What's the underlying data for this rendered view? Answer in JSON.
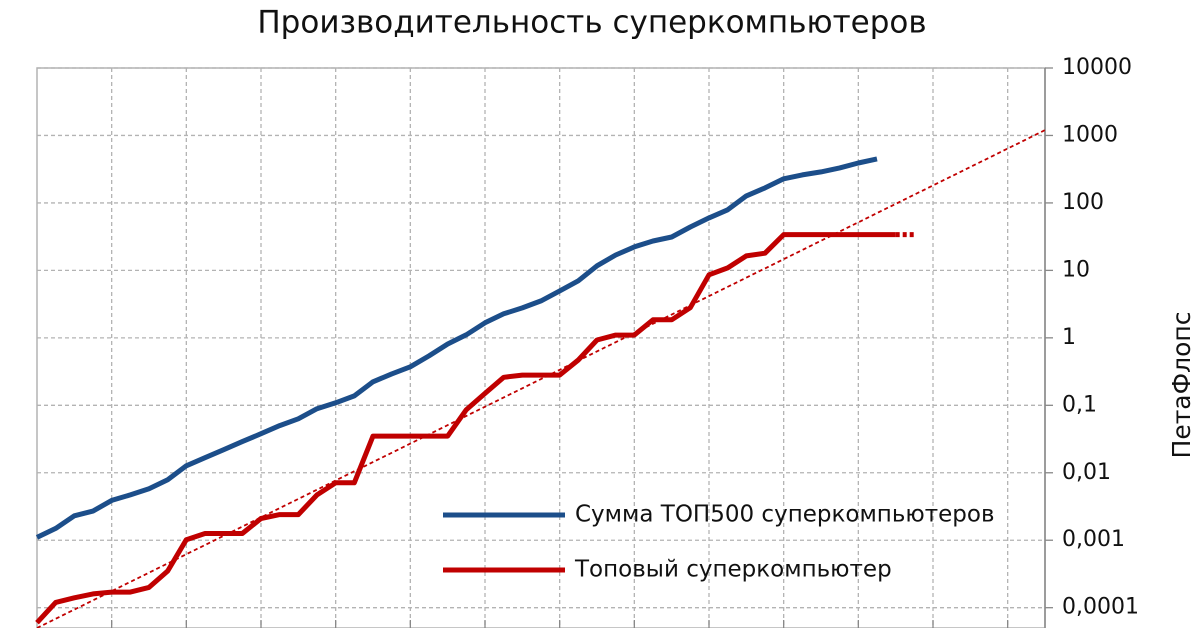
{
  "chart_data": {
    "type": "line",
    "title": "Производительность суперкомпьютеров",
    "y_label": "ПетаФлопс",
    "log_scale_y": true,
    "grid": true,
    "legend": "lower right",
    "x": [
      0,
      1,
      2,
      3,
      4,
      5,
      6,
      7,
      8,
      9,
      10,
      11,
      12,
      13,
      14,
      15,
      16,
      17,
      18,
      19,
      20,
      21,
      22,
      23,
      24,
      25,
      26,
      27,
      28,
      29,
      30,
      31,
      32,
      33,
      34,
      35,
      36,
      37,
      38,
      39,
      40,
      41,
      42,
      43,
      44,
      45,
      46,
      47
    ],
    "xlim": [
      0,
      54
    ],
    "xticks": [
      4,
      8,
      12,
      16,
      20,
      24,
      28,
      32,
      36,
      40,
      44,
      48,
      52
    ],
    "ylim": [
      5e-05,
      10000
    ],
    "yticks": [
      {
        "value": 0.0001,
        "label": "0,0001"
      },
      {
        "value": 0.001,
        "label": "0,001"
      },
      {
        "value": 0.01,
        "label": "0,01"
      },
      {
        "value": 0.1,
        "label": "0,1"
      },
      1,
      10,
      100,
      1000,
      10000
    ],
    "series": [
      {
        "name": "Сумма ТОП500 суперкомпьютеров",
        "color": "#1c4e8a",
        "values": [
          0.0011,
          0.0015,
          0.0023,
          0.0027,
          0.0039,
          0.0047,
          0.0058,
          0.0079,
          0.0127,
          0.0167,
          0.022,
          0.029,
          0.038,
          0.05,
          0.063,
          0.089,
          0.109,
          0.138,
          0.223,
          0.292,
          0.372,
          0.54,
          0.81,
          1.11,
          1.67,
          2.27,
          2.78,
          3.53,
          4.97,
          7.0,
          11.7,
          16.9,
          22.3,
          27.3,
          31.3,
          44,
          60,
          79,
          127,
          167,
          228,
          260,
          288,
          330,
          391,
          449,
          null,
          null
        ]
      },
      {
        "name": "Топовый суперкомпьютер",
        "color": "#c00000",
        "values": [
          6e-05,
          0.00012,
          0.00014,
          0.00016,
          0.00017,
          0.00017,
          0.0002,
          0.00035,
          0.00102,
          0.00126,
          0.00126,
          0.00126,
          0.0021,
          0.0024,
          0.0024,
          0.0047,
          0.0071,
          0.0071,
          0.035,
          0.035,
          0.035,
          0.035,
          0.035,
          0.086,
          0.15,
          0.26,
          0.28,
          0.28,
          0.28,
          0.47,
          0.93,
          1.1,
          1.1,
          1.85,
          1.85,
          2.8,
          8.6,
          10.9,
          16.4,
          18,
          33.9,
          33.9,
          33.9,
          33.9,
          33.9,
          33.9,
          33.9,
          null
        ]
      },
      {
        "color": "#c00000",
        "style": "dotted",
        "values": [
          null,
          null,
          null,
          null,
          null,
          null,
          null,
          null,
          null,
          null,
          null,
          null,
          null,
          null,
          null,
          null,
          null,
          null,
          null,
          null,
          null,
          null,
          null,
          null,
          null,
          null,
          null,
          null,
          null,
          null,
          null,
          null,
          null,
          null,
          null,
          null,
          null,
          null,
          null,
          null,
          null,
          null,
          null,
          null,
          null,
          null,
          33.9,
          33.9
        ]
      }
    ],
    "trendline": {
      "color": "#c00000",
      "x": [
        0,
        54
      ],
      "values": [
        5e-05,
        1200
      ]
    }
  }
}
